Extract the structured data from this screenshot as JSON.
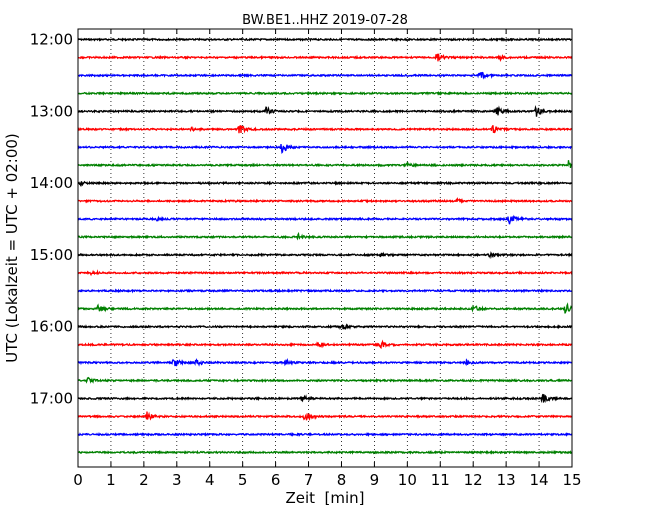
{
  "chart_data": {
    "type": "line",
    "title": "BW.BE1..HHZ 2019-07-28",
    "xlabel": "Zeit  [min]",
    "ylabel": "UTC (Lokalzeit = UTC + 02:00)",
    "xlim": [
      0,
      15
    ],
    "xticks": [
      0,
      1,
      2,
      3,
      4,
      5,
      6,
      7,
      8,
      9,
      10,
      11,
      12,
      13,
      14,
      15
    ],
    "y_ticks": [
      "12:00",
      "13:00",
      "14:00",
      "15:00",
      "16:00",
      "17:00"
    ],
    "trace_interval_min": 15,
    "grid": true,
    "grid_style": "dotted vertical at each minute",
    "colors": [
      "#000000",
      "#ff0000",
      "#0000ff",
      "#008000"
    ],
    "traces": [
      {
        "start": "12:00",
        "color": "#000000",
        "events": []
      },
      {
        "start": "12:15",
        "color": "#ff0000",
        "events": [
          {
            "t": 10.9,
            "amp": 5
          },
          {
            "t": 12.8,
            "amp": 2.5
          }
        ]
      },
      {
        "start": "12:30",
        "color": "#0000ff",
        "events": [
          {
            "t": 12.2,
            "amp": 5
          }
        ]
      },
      {
        "start": "12:45",
        "color": "#008000",
        "events": []
      },
      {
        "start": "13:00",
        "color": "#000000",
        "events": [
          {
            "t": 5.7,
            "amp": 5
          },
          {
            "t": 12.7,
            "amp": 6
          },
          {
            "t": 13.9,
            "amp": 6
          }
        ]
      },
      {
        "start": "13:15",
        "color": "#ff0000",
        "events": [
          {
            "t": 3.4,
            "amp": 2.5
          },
          {
            "t": 4.9,
            "amp": 6
          },
          {
            "t": 12.6,
            "amp": 4
          }
        ]
      },
      {
        "start": "13:30",
        "color": "#0000ff",
        "events": [
          {
            "t": 6.2,
            "amp": 6
          }
        ]
      },
      {
        "start": "13:45",
        "color": "#008000",
        "events": [
          {
            "t": 10.0,
            "amp": 2
          },
          {
            "t": 14.9,
            "amp": 5
          }
        ]
      },
      {
        "start": "14:00",
        "color": "#000000",
        "events": [
          {
            "t": 0.1,
            "amp": 2
          }
        ]
      },
      {
        "start": "14:15",
        "color": "#ff0000",
        "events": [
          {
            "t": 11.5,
            "amp": 2
          }
        ]
      },
      {
        "start": "14:30",
        "color": "#0000ff",
        "events": [
          {
            "t": 2.4,
            "amp": 1.5
          },
          {
            "t": 13.1,
            "amp": 6
          }
        ]
      },
      {
        "start": "14:45",
        "color": "#008000",
        "events": [
          {
            "t": 6.7,
            "amp": 3
          }
        ]
      },
      {
        "start": "15:00",
        "color": "#000000",
        "events": [
          {
            "t": 9.2,
            "amp": 2
          },
          {
            "t": 12.5,
            "amp": 2
          }
        ]
      },
      {
        "start": "15:15",
        "color": "#ff0000",
        "events": [
          {
            "t": 0.4,
            "amp": 2
          }
        ]
      },
      {
        "start": "15:30",
        "color": "#0000ff",
        "events": []
      },
      {
        "start": "15:45",
        "color": "#008000",
        "events": [
          {
            "t": 0.6,
            "amp": 4
          },
          {
            "t": 12.0,
            "amp": 4
          },
          {
            "t": 14.8,
            "amp": 7
          }
        ]
      },
      {
        "start": "16:00",
        "color": "#000000",
        "events": [
          {
            "t": 8.0,
            "amp": 4
          }
        ]
      },
      {
        "start": "16:15",
        "color": "#ff0000",
        "events": [
          {
            "t": 7.3,
            "amp": 3
          },
          {
            "t": 9.2,
            "amp": 4
          }
        ]
      },
      {
        "start": "16:30",
        "color": "#0000ff",
        "events": [
          {
            "t": 2.9,
            "amp": 5
          },
          {
            "t": 3.6,
            "amp": 4
          },
          {
            "t": 6.3,
            "amp": 3
          },
          {
            "t": 11.8,
            "amp": 3
          }
        ]
      },
      {
        "start": "16:45",
        "color": "#008000",
        "events": [
          {
            "t": 0.3,
            "amp": 3
          }
        ]
      },
      {
        "start": "17:00",
        "color": "#000000",
        "events": [
          {
            "t": 6.8,
            "amp": 3
          },
          {
            "t": 14.1,
            "amp": 5
          }
        ]
      },
      {
        "start": "17:15",
        "color": "#ff0000",
        "events": [
          {
            "t": 2.1,
            "amp": 5
          },
          {
            "t": 6.9,
            "amp": 6
          }
        ]
      },
      {
        "start": "17:30",
        "color": "#0000ff",
        "events": []
      },
      {
        "start": "17:45",
        "color": "#008000",
        "events": []
      }
    ]
  }
}
